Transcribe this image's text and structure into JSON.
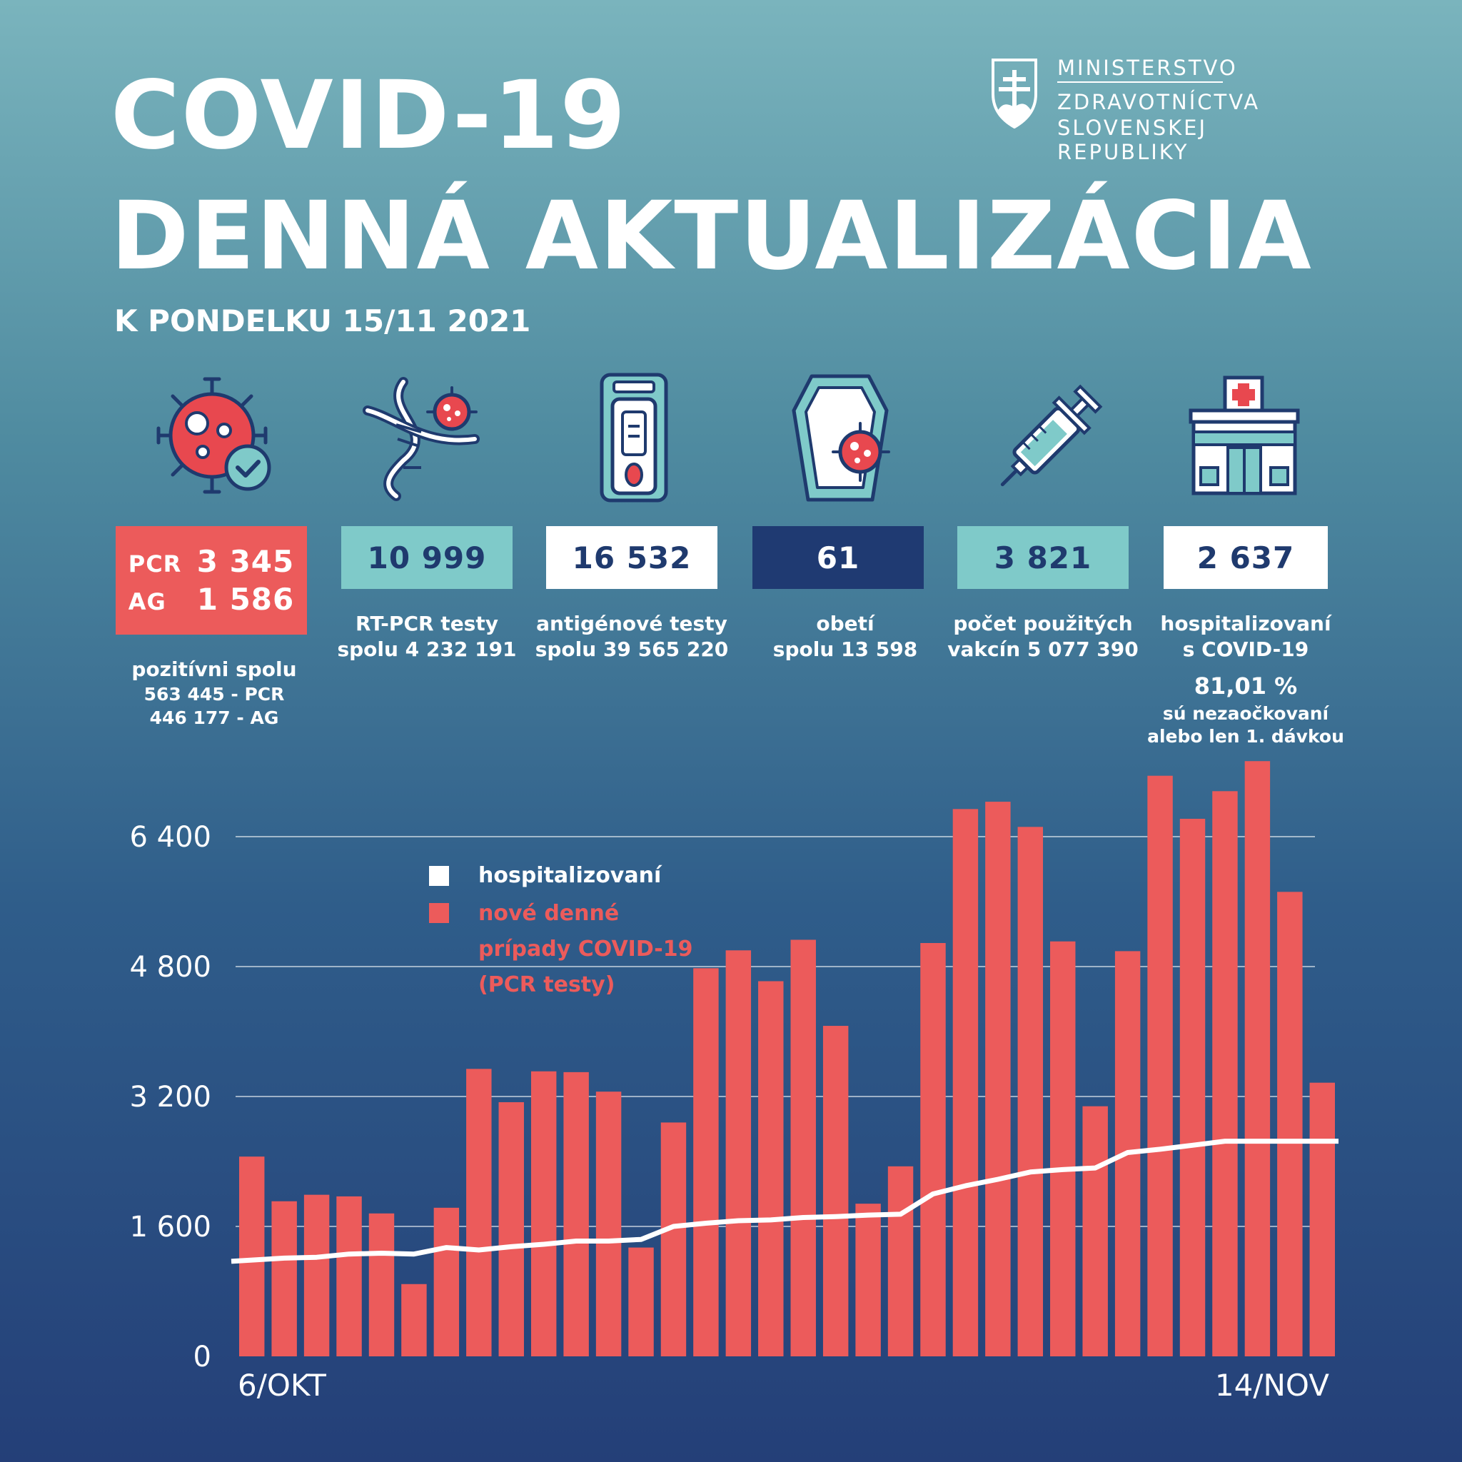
{
  "header": {
    "title_line1": "COVID-19",
    "title_line2": "DENNÁ AKTUALIZÁCIA",
    "subtitle": "K PONDELKU 15/11 2021",
    "ministry_line1": "MINISTERSTVO",
    "ministry_line2": "ZDRAVOTNÍCTVA",
    "ministry_line3": "SLOVENSKEJ REPUBLIKY"
  },
  "stats": {
    "positive": {
      "pcr_label": "PCR",
      "pcr_value": "3 345",
      "ag_label": "AG",
      "ag_value": "1 586",
      "desc_line1": "pozitívni spolu",
      "desc_line2": "563 445 - PCR",
      "desc_line3": "446 177 - AG"
    },
    "rtpcr": {
      "value": "10 999",
      "desc_line1": "RT-PCR testy",
      "desc_line2": "spolu  4 232 191"
    },
    "antigen": {
      "value": "16 532",
      "desc_line1": "antigénové testy",
      "desc_line2": "spolu 39 565 220"
    },
    "deaths": {
      "value": "61",
      "desc_line1": "obetí",
      "desc_line2": "spolu 13 598"
    },
    "vaccines": {
      "value": "3 821",
      "desc_line1": "počet použitých",
      "desc_line2": "vakcín  5 077 390"
    },
    "hospital": {
      "value": "2 637",
      "desc_line1": "hospitalizovaní",
      "desc_line2": "s COVID-19",
      "pct": "81,01 %",
      "pct_line1": "sú nezaočkovaní",
      "pct_line2": "alebo len 1. dávkou"
    }
  },
  "icons": {
    "virus": "virus-check-icon",
    "dna": "dna-virus-icon",
    "test": "antigen-test-icon",
    "coffin": "coffin-icon",
    "syringe": "syringe-icon",
    "hospital": "hospital-icon"
  },
  "colors": {
    "bars": "#ec5b5b",
    "line": "#ffffff",
    "teal_box": "#7fcac9",
    "navy_box": "#1f3a72"
  },
  "chart_data": {
    "type": "bar",
    "x_start_label": "6/OKT",
    "x_end_label": "14/NOV",
    "y_ticks": [
      "6 400",
      "4 800",
      "3 200",
      "1 600",
      "0"
    ],
    "y_tick_values": [
      6400,
      4800,
      3200,
      1600,
      0
    ],
    "ylim": [
      0,
      7400
    ],
    "series": [
      {
        "name": "nové denné prípady COVID-19 (PCR testy)",
        "legend_lines": [
          "nové denné",
          "prípady COVID-19",
          "(PCR testy)"
        ],
        "kind": "bar",
        "values": [
          2460,
          1910,
          1990,
          1970,
          1760,
          890,
          1830,
          3540,
          3130,
          3510,
          3500,
          3260,
          1340,
          2880,
          4780,
          5000,
          4620,
          5130,
          4070,
          1880,
          2340,
          5090,
          6740,
          6830,
          6520,
          5110,
          3080,
          4990,
          7150,
          6620,
          6960,
          7330,
          5720,
          3370
        ]
      },
      {
        "name": "hospitalizovaní",
        "kind": "line",
        "values": [
          1170,
          1210,
          1220,
          1260,
          1270,
          1260,
          1340,
          1310,
          1350,
          1380,
          1420,
          1420,
          1440,
          1600,
          1640,
          1670,
          1680,
          1710,
          1720,
          1740,
          1750,
          2000,
          2100,
          2180,
          2270,
          2300,
          2320,
          2510,
          2550,
          2600,
          2650,
          2650,
          2650,
          2650
        ]
      }
    ]
  }
}
